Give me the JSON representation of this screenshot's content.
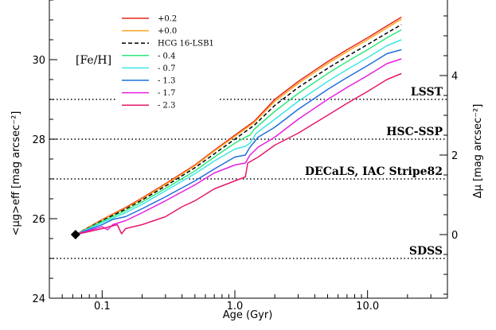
{
  "chart_data": {
    "type": "line",
    "xlabel": "Age (Gyr)",
    "ylabel": "<μg>eff [mag arcsec⁻²]",
    "ylabel_right": "Δμ [mag arcsec⁻²]",
    "xscale": "log",
    "xlim": [
      0.04,
      40
    ],
    "ylim": [
      24,
      31.5
    ],
    "x_ticks": [
      0.1,
      1.0,
      10.0
    ],
    "x_tick_labels": [
      "0.1",
      "1.0",
      "10.0"
    ],
    "y_ticks": [
      24,
      26,
      28,
      30
    ],
    "y_tick_labels": [
      "24",
      "26",
      "28",
      "30"
    ],
    "right_ticks": [
      0,
      2,
      4
    ],
    "right_tick_labels": [
      "0",
      "2",
      "4"
    ],
    "right_offset_mag": 25.6,
    "legend_title": "[Fe/H]",
    "legend_position": "top-left",
    "start_point": {
      "x": 0.063,
      "y": 25.6
    },
    "survey_limits": [
      {
        "name": "LSST",
        "mag": 29.0
      },
      {
        "name": "HSC-SSP",
        "mag": 28.0
      },
      {
        "name": "DECaLS, IAC Stripe82",
        "mag": 27.0
      },
      {
        "name": "SDSS",
        "mag": 25.0
      }
    ],
    "series": [
      {
        "name": "+0.2",
        "color": "#e8261c",
        "dash": "solid",
        "x": [
          0.063,
          0.1,
          0.15,
          0.2,
          0.3,
          0.5,
          0.7,
          1.0,
          1.4,
          2.0,
          3.0,
          5.0,
          7.0,
          10.0,
          14.0,
          18.0
        ],
        "y": [
          25.6,
          25.98,
          26.28,
          26.52,
          26.88,
          27.35,
          27.72,
          28.1,
          28.45,
          29.0,
          29.45,
          29.95,
          30.25,
          30.55,
          30.85,
          31.07
        ]
      },
      {
        "name": "+0.0",
        "color": "#ffa51f",
        "dash": "solid",
        "x": [
          0.063,
          0.1,
          0.15,
          0.2,
          0.3,
          0.5,
          0.7,
          1.0,
          1.4,
          2.0,
          3.0,
          5.0,
          7.0,
          10.0,
          14.0,
          18.0
        ],
        "y": [
          25.6,
          25.97,
          26.26,
          26.5,
          26.86,
          27.33,
          27.7,
          28.07,
          28.42,
          28.95,
          29.4,
          29.9,
          30.2,
          30.5,
          30.8,
          31.02
        ]
      },
      {
        "name": "HCG 16-LSB1",
        "color": "#000000",
        "dash": "dashed",
        "x": [
          0.063,
          0.1,
          0.15,
          0.2,
          0.3,
          0.5,
          0.7,
          1.0,
          1.4,
          2.0,
          3.0,
          5.0,
          7.0,
          10.0,
          14.0,
          18.0
        ],
        "y": [
          25.6,
          25.95,
          26.24,
          26.47,
          26.82,
          27.28,
          27.63,
          28.0,
          28.35,
          28.85,
          29.3,
          29.78,
          30.08,
          30.38,
          30.67,
          30.88
        ]
      },
      {
        "name": "- 0.4",
        "color": "#2ee87a",
        "dash": "solid",
        "x": [
          0.063,
          0.1,
          0.15,
          0.2,
          0.3,
          0.5,
          0.7,
          1.0,
          1.2,
          1.3,
          1.4,
          2.0,
          3.0,
          5.0,
          7.0,
          10.0,
          14.0,
          18.0
        ],
        "y": [
          25.6,
          25.93,
          26.2,
          26.42,
          26.76,
          27.2,
          27.55,
          27.9,
          28.05,
          28.1,
          28.25,
          28.7,
          29.15,
          29.65,
          29.95,
          30.25,
          30.55,
          30.75
        ]
      },
      {
        "name": "- 0.7",
        "color": "#3ee6e6",
        "dash": "solid",
        "x": [
          0.063,
          0.1,
          0.15,
          0.2,
          0.3,
          0.5,
          0.7,
          1.0,
          1.2,
          1.3,
          1.45,
          2.0,
          3.0,
          5.0,
          7.0,
          10.0,
          14.0,
          18.0
        ],
        "y": [
          25.6,
          25.9,
          26.15,
          26.36,
          26.7,
          27.13,
          27.45,
          27.75,
          27.82,
          27.9,
          28.15,
          28.5,
          28.95,
          29.45,
          29.75,
          30.05,
          30.35,
          30.5
        ]
      },
      {
        "name": "- 1.3",
        "color": "#1f6fdc",
        "dash": "solid",
        "x": [
          0.063,
          0.1,
          0.12,
          0.15,
          0.2,
          0.3,
          0.5,
          0.7,
          1.0,
          1.2,
          1.3,
          1.5,
          2.0,
          3.0,
          5.0,
          7.0,
          10.0,
          14.0,
          18.0
        ],
        "y": [
          25.6,
          25.85,
          25.98,
          26.05,
          26.25,
          26.55,
          26.95,
          27.25,
          27.55,
          27.6,
          27.8,
          28.05,
          28.3,
          28.75,
          29.25,
          29.55,
          29.85,
          30.15,
          30.25
        ]
      },
      {
        "name": "- 1.7",
        "color": "#e61fe0",
        "dash": "solid",
        "x": [
          0.063,
          0.1,
          0.11,
          0.12,
          0.15,
          0.2,
          0.3,
          0.5,
          0.7,
          1.0,
          1.2,
          1.3,
          1.5,
          2.0,
          3.0,
          5.0,
          7.0,
          10.0,
          14.0,
          18.0
        ],
        "y": [
          25.6,
          25.8,
          25.72,
          25.85,
          25.95,
          26.15,
          26.45,
          26.85,
          27.15,
          27.35,
          27.4,
          27.6,
          27.8,
          28.05,
          28.5,
          29.0,
          29.3,
          29.6,
          29.9,
          30.02
        ]
      },
      {
        "name": "- 2.3",
        "color": "#e6196e",
        "dash": "solid",
        "x": [
          0.063,
          0.1,
          0.13,
          0.14,
          0.15,
          0.2,
          0.3,
          0.4,
          0.5,
          0.7,
          1.0,
          1.2,
          1.25,
          1.5,
          2.0,
          3.0,
          5.0,
          7.0,
          10.0,
          14.0,
          18.0
        ],
        "y": [
          25.6,
          25.75,
          25.85,
          25.62,
          25.75,
          25.85,
          26.05,
          26.3,
          26.45,
          26.75,
          26.95,
          27.05,
          27.4,
          27.55,
          27.85,
          28.15,
          28.6,
          28.9,
          29.2,
          29.5,
          29.65
        ]
      }
    ]
  }
}
